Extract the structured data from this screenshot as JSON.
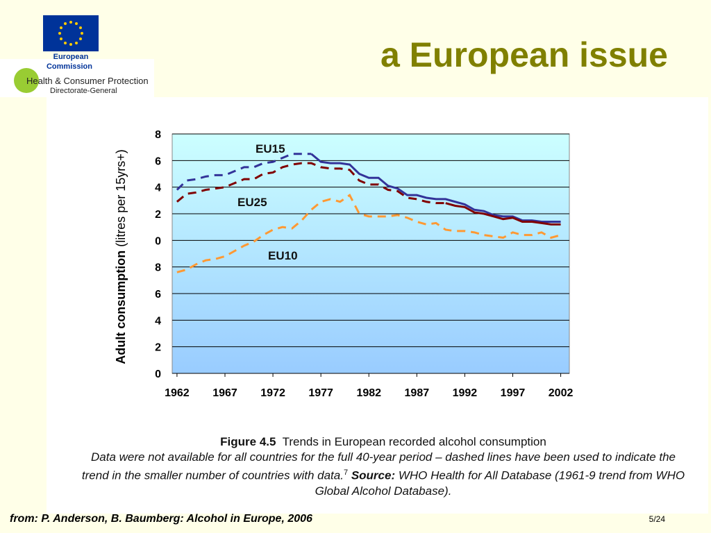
{
  "header": {
    "title": "a European issue",
    "logo_line1": "European",
    "logo_line2": "Commission",
    "dg_line1": "Health & Consumer Protection",
    "dg_line2": "Directorate-General"
  },
  "chart_data": {
    "type": "line",
    "y_label_bold": "Adult consumption",
    "y_label_rest": "(litres per 15yrs+)",
    "x": [
      1962,
      1963,
      1964,
      1965,
      1966,
      1967,
      1968,
      1969,
      1970,
      1971,
      1972,
      1973,
      1974,
      1975,
      1976,
      1977,
      1978,
      1979,
      1980,
      1981,
      1982,
      1983,
      1984,
      1985,
      1986,
      1987,
      1988,
      1989,
      1990,
      1991,
      1992,
      1993,
      1994,
      1995,
      1996,
      1997,
      1998,
      1999,
      2000,
      2001,
      2002
    ],
    "xlim": [
      1961.5,
      2002.9
    ],
    "xticks": [
      1962,
      1967,
      1972,
      1977,
      1982,
      1987,
      1992,
      1997,
      2002
    ],
    "ylim": [
      0,
      18
    ],
    "yticks": [
      0,
      2,
      4,
      6,
      8,
      {
        "value": 10,
        "label": "0"
      },
      {
        "value": 12,
        "label": "2"
      },
      {
        "value": 14,
        "label": "4"
      },
      {
        "value": 16,
        "label": "6"
      },
      {
        "value": 18,
        "label": "8"
      }
    ],
    "grid": true,
    "series": [
      {
        "name": "EU15",
        "color": "#333399",
        "dashed_until": 1976,
        "values": [
          13.8,
          14.5,
          14.6,
          14.8,
          14.9,
          14.9,
          15.2,
          15.5,
          15.5,
          15.8,
          15.9,
          16.2,
          16.5,
          16.5,
          16.5,
          15.9,
          15.8,
          15.8,
          15.7,
          15.0,
          14.7,
          14.7,
          14.1,
          13.9,
          13.4,
          13.4,
          13.2,
          13.1,
          13.1,
          12.9,
          12.7,
          12.3,
          12.2,
          11.9,
          11.8,
          11.8,
          11.5,
          11.5,
          11.4,
          11.4,
          11.4
        ]
      },
      {
        "name": "EU25",
        "color": "#800000",
        "dashed_until": 1990,
        "values": [
          12.9,
          13.5,
          13.6,
          13.8,
          13.9,
          14.0,
          14.3,
          14.6,
          14.6,
          15.0,
          15.1,
          15.5,
          15.7,
          15.8,
          15.8,
          15.5,
          15.4,
          15.4,
          15.3,
          14.5,
          14.2,
          14.2,
          13.8,
          13.7,
          13.2,
          13.1,
          12.9,
          12.8,
          12.8,
          12.6,
          12.5,
          12.1,
          12.0,
          11.8,
          11.6,
          11.7,
          11.4,
          11.4,
          11.3,
          11.2,
          11.2
        ]
      },
      {
        "name": "EU10",
        "color": "#ff9933",
        "dashed_until": 2002,
        "values": [
          7.6,
          7.8,
          8.2,
          8.5,
          8.6,
          8.8,
          9.2,
          9.6,
          9.9,
          10.4,
          10.8,
          11.0,
          10.9,
          11.5,
          12.3,
          12.9,
          13.1,
          12.9,
          13.4,
          12.0,
          11.8,
          11.8,
          11.8,
          11.9,
          11.7,
          11.4,
          11.2,
          11.3,
          10.8,
          10.7,
          10.7,
          10.6,
          10.4,
          10.3,
          10.2,
          10.6,
          10.4,
          10.4,
          10.6,
          10.2,
          10.4
        ]
      }
    ]
  },
  "caption": {
    "figure": "Figure 4.5",
    "figure_title": "Trends in European recorded alcohol consumption",
    "text": "Data were not available for all countries for the full 40-year period – dashed lines have been used to indicate the trend in the smaller number of countries with data.",
    "note": "7",
    "source_label": "Source:",
    "source": "WHO Health for All Database (1961-9 trend from WHO Global Alcohol Database)."
  },
  "footer": {
    "credit": "from: P. Anderson, B. Baumberg: Alcohol in Europe, 2006",
    "page": "5/24"
  }
}
